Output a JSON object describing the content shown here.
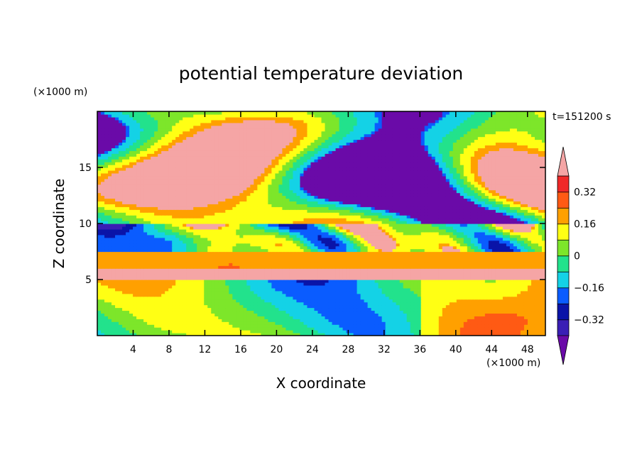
{
  "chart_data": {
    "type": "heatmap",
    "title": "potential temperature deviation",
    "xlabel": "X coordinate",
    "ylabel": "Z coordinate",
    "x_unit": "(×1000 m)",
    "y_unit": "(×1000 m)",
    "time_label": "t=151200 s",
    "xlim": [
      0,
      50
    ],
    "ylim": [
      0,
      20
    ],
    "x_ticks": [
      4,
      8,
      12,
      16,
      20,
      24,
      28,
      32,
      36,
      40,
      44,
      48
    ],
    "y_ticks": [
      5,
      10,
      15
    ],
    "colorbar": {
      "levels": [
        -0.4,
        -0.32,
        -0.24,
        -0.16,
        -0.08,
        0,
        0.08,
        0.16,
        0.24,
        0.32,
        0.4
      ],
      "labeled_ticks": [
        {
          "value": 0.32,
          "label": "0.32"
        },
        {
          "value": 0.16,
          "label": "0.16"
        },
        {
          "value": 0,
          "label": "0"
        },
        {
          "value": -0.16,
          "label": "−0.16"
        },
        {
          "value": -0.32,
          "label": "−0.32"
        }
      ],
      "colors": [
        "#6a0aa8",
        "#3a1fb5",
        "#0a14a8",
        "#0a5cff",
        "#14d2e6",
        "#22e28c",
        "#7de62a",
        "#ffff14",
        "#ffa000",
        "#ff5a14",
        "#f02828",
        "#f5a5a5"
      ],
      "extend": "both"
    },
    "regions": [
      {
        "z_range": [
          0,
          5
        ],
        "description": "mixed turbulent field, blue to red"
      },
      {
        "z_range": [
          5,
          6
        ],
        "value": 0.45
      },
      {
        "z_range": [
          6,
          7.6
        ],
        "value": 0.18
      },
      {
        "z_range": [
          7.6,
          10
        ],
        "description": "mixed with high positive patches"
      },
      {
        "z_range": [
          10,
          20
        ],
        "description": "large alternating patches of -0.45 and 0.45"
      }
    ]
  }
}
